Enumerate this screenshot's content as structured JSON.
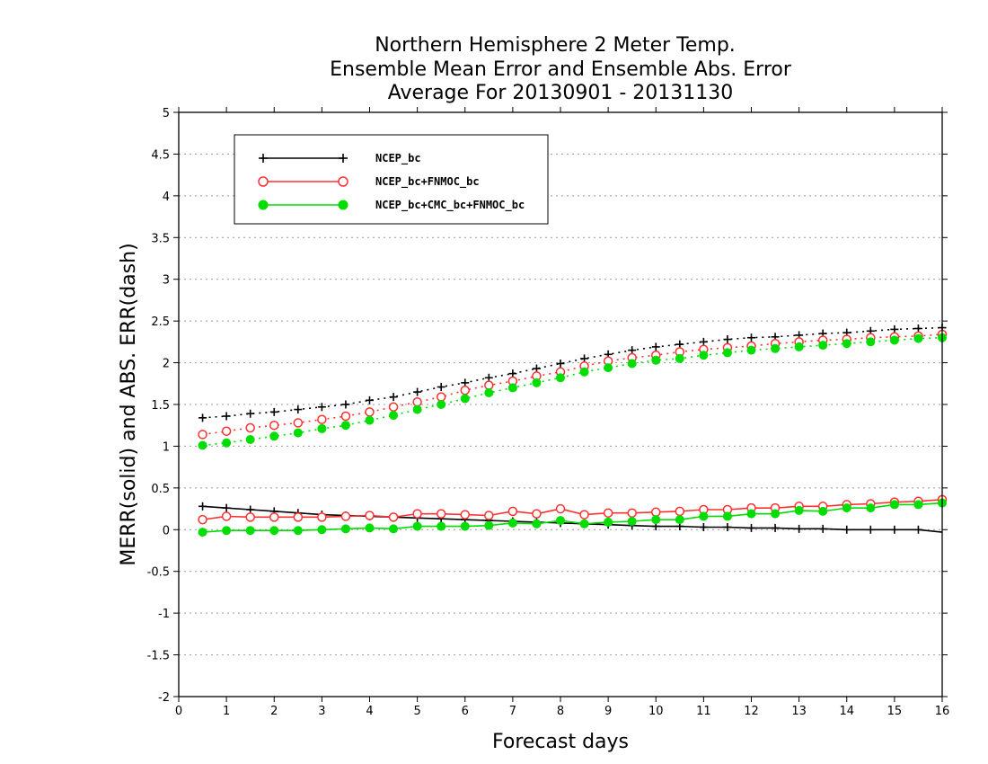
{
  "chart_data": {
    "type": "line",
    "title": [
      "Northern Hemisphere 2 Meter Temp.",
      "Ensemble Mean Error and Ensemble Abs. Error",
      "Average For 20130901 - 20131130"
    ],
    "xlabel": "Forecast days",
    "ylabel": "MERR(solid) and ABS. ERR(dash)",
    "xlim": [
      0,
      16
    ],
    "ylim": [
      -2,
      5
    ],
    "xticks": [
      "0",
      "1",
      "2",
      "3",
      "4",
      "5",
      "6",
      "7",
      "8",
      "9",
      "10",
      "11",
      "12",
      "13",
      "14",
      "15",
      "16"
    ],
    "yticks": [
      "-2",
      "-1.5",
      "-1",
      "-0.5",
      "0",
      "0.5",
      "1",
      "1.5",
      "2",
      "2.5",
      "3",
      "3.5",
      "4",
      "4.5",
      "5"
    ],
    "grid": true,
    "legend_position": "top-left",
    "x": [
      0.5,
      1,
      1.5,
      2,
      2.5,
      3,
      3.5,
      4,
      4.5,
      5,
      5.5,
      6,
      6.5,
      7,
      7.5,
      8,
      8.5,
      9,
      9.5,
      10,
      10.5,
      11,
      11.5,
      12,
      12.5,
      13,
      13.5,
      14,
      14.5,
      15,
      15.5,
      16
    ],
    "series": [
      {
        "name": "NCEP_bc",
        "color": "#000000",
        "marker": "plus",
        "merr": [
          0.28,
          0.26,
          0.24,
          0.22,
          0.2,
          0.18,
          0.17,
          0.16,
          0.15,
          0.14,
          0.13,
          0.12,
          0.11,
          0.1,
          0.09,
          0.08,
          0.07,
          0.06,
          0.05,
          0.04,
          0.04,
          0.03,
          0.03,
          0.02,
          0.02,
          0.01,
          0.01,
          0.0,
          0.0,
          0.0,
          0.0,
          -0.03
        ],
        "abs_err": [
          1.34,
          1.36,
          1.39,
          1.41,
          1.44,
          1.47,
          1.5,
          1.55,
          1.59,
          1.65,
          1.71,
          1.76,
          1.82,
          1.87,
          1.93,
          1.99,
          2.05,
          2.1,
          2.15,
          2.19,
          2.22,
          2.25,
          2.28,
          2.3,
          2.31,
          2.33,
          2.35,
          2.36,
          2.38,
          2.4,
          2.41,
          2.42
        ]
      },
      {
        "name": "NCEP_bc+FNMOC_bc",
        "color": "#ff3030",
        "marker": "open-circle",
        "merr": [
          0.12,
          0.16,
          0.15,
          0.15,
          0.15,
          0.15,
          0.16,
          0.17,
          0.15,
          0.19,
          0.19,
          0.18,
          0.17,
          0.22,
          0.19,
          0.25,
          0.18,
          0.2,
          0.2,
          0.21,
          0.22,
          0.24,
          0.24,
          0.26,
          0.26,
          0.28,
          0.28,
          0.3,
          0.31,
          0.33,
          0.34,
          0.36
        ],
        "abs_err": [
          1.14,
          1.18,
          1.22,
          1.25,
          1.28,
          1.32,
          1.36,
          1.41,
          1.47,
          1.53,
          1.59,
          1.67,
          1.73,
          1.78,
          1.84,
          1.89,
          1.96,
          2.02,
          2.06,
          2.09,
          2.13,
          2.16,
          2.18,
          2.2,
          2.23,
          2.25,
          2.27,
          2.28,
          2.3,
          2.31,
          2.32,
          2.34
        ]
      },
      {
        "name": "NCEP_bc+CMC_bc+FNMOC_bc",
        "color": "#00dd00",
        "marker": "filled-circle",
        "merr": [
          -0.03,
          -0.01,
          -0.01,
          -0.01,
          -0.01,
          0.0,
          0.01,
          0.02,
          0.01,
          0.04,
          0.04,
          0.04,
          0.05,
          0.08,
          0.07,
          0.11,
          0.07,
          0.09,
          0.1,
          0.12,
          0.12,
          0.16,
          0.16,
          0.19,
          0.19,
          0.23,
          0.22,
          0.26,
          0.26,
          0.3,
          0.3,
          0.32
        ],
        "abs_err": [
          1.01,
          1.04,
          1.08,
          1.12,
          1.16,
          1.21,
          1.25,
          1.31,
          1.37,
          1.44,
          1.5,
          1.57,
          1.64,
          1.7,
          1.76,
          1.82,
          1.89,
          1.94,
          1.99,
          2.03,
          2.05,
          2.09,
          2.12,
          2.15,
          2.17,
          2.19,
          2.21,
          2.23,
          2.25,
          2.27,
          2.29,
          2.3
        ]
      }
    ]
  }
}
